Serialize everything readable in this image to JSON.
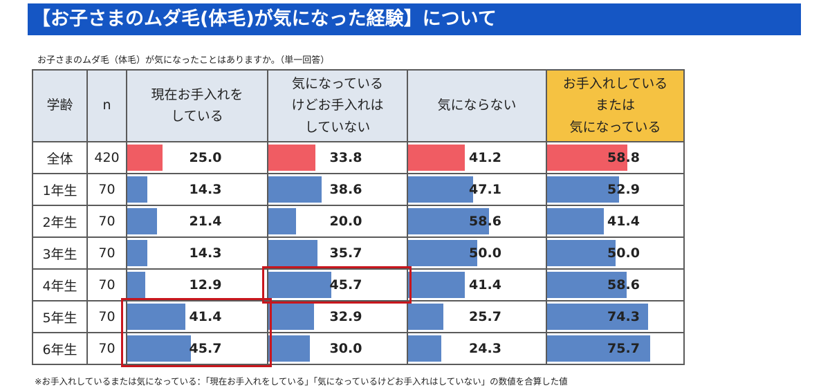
{
  "header": {
    "title": "【お子さまのムダ毛(体毛)が気になった経験】について"
  },
  "question": "お子さまのムダ毛（体毛）が気になったことはありますか。（単一回答）",
  "note": "※お手入れしているまたは気になっている：「現在お手入れをしている」「気になっているけどお手入れはしていない」の数値を合算した値",
  "colors": {
    "title_bg": "#1556c4",
    "header_bg": "#dfe6ef",
    "highlight_header_bg": "#f5c242",
    "total_bar": "#f05c63",
    "grade_bar": "#5b86c6",
    "red_outline": "#c8161d"
  },
  "table": {
    "headers": {
      "grade": "学齢",
      "n": "n",
      "col1": [
        "現在お手入れを",
        "している"
      ],
      "col2": [
        "気になっている",
        "けどお手入れは",
        "していない"
      ],
      "col3": [
        "気にならない"
      ],
      "col4": [
        "お手入れしている",
        "または",
        "気になっている"
      ]
    }
  },
  "chart_data": {
    "type": "table",
    "unit": "%",
    "columns": [
      "現在お手入れをしている",
      "気になっているけどお手入れはしていない",
      "気にならない",
      "お手入れしているまたは気になっている"
    ],
    "rows": [
      {
        "grade": "全体",
        "n": "420",
        "values": [
          25.0,
          33.8,
          41.2,
          58.8
        ],
        "labels": [
          "25.0",
          "33.8",
          "41.2",
          "58.8"
        ],
        "total": true
      },
      {
        "grade": "1年生",
        "n": "70",
        "values": [
          14.3,
          38.6,
          47.1,
          52.9
        ],
        "labels": [
          "14.3",
          "38.6",
          "47.1",
          "52.9"
        ]
      },
      {
        "grade": "2年生",
        "n": "70",
        "values": [
          21.4,
          20.0,
          58.6,
          41.4
        ],
        "labels": [
          "21.4",
          "20.0",
          "58.6",
          "41.4"
        ]
      },
      {
        "grade": "3年生",
        "n": "70",
        "values": [
          14.3,
          35.7,
          50.0,
          50.0
        ],
        "labels": [
          "14.3",
          "35.7",
          "50.0",
          "50.0"
        ]
      },
      {
        "grade": "4年生",
        "n": "70",
        "values": [
          12.9,
          45.7,
          41.4,
          58.6
        ],
        "labels": [
          "12.9",
          "45.7",
          "41.4",
          "58.6"
        ]
      },
      {
        "grade": "5年生",
        "n": "70",
        "values": [
          41.4,
          32.9,
          25.7,
          74.3
        ],
        "labels": [
          "41.4",
          "32.9",
          "25.7",
          "74.3"
        ]
      },
      {
        "grade": "6年生",
        "n": "70",
        "values": [
          45.7,
          30.0,
          24.3,
          75.7
        ],
        "labels": [
          "45.7",
          "30.0",
          "24.3",
          "75.7"
        ]
      }
    ],
    "bar_scale_max": 100,
    "highlighted_cells": [
      {
        "rows": [
          "4年生"
        ],
        "column": "気になっているけどお手入れはしていない"
      },
      {
        "rows": [
          "5年生",
          "6年生"
        ],
        "column": "現在お手入れをしている"
      }
    ]
  }
}
